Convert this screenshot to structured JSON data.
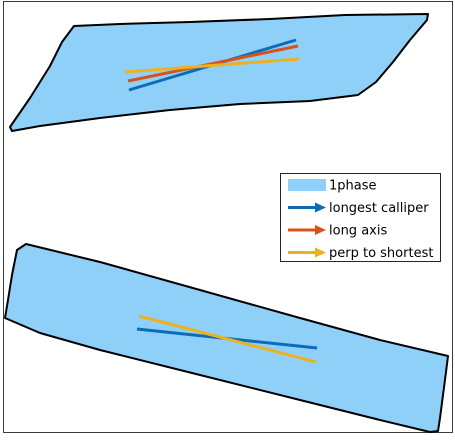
{
  "colors": {
    "grain_fill": "#8fd0f8",
    "grain_edge": "#000000",
    "frame": "#3a3a3a",
    "longest_calliper": "#0a6db8",
    "long_axis": "#d95319",
    "perp_to_shortest": "#edb120"
  },
  "legend": {
    "position": "right",
    "entries": [
      {
        "key": "phase",
        "label": "1phase",
        "marker": "patch",
        "color": "#8fd0f8"
      },
      {
        "key": "longest_calliper",
        "label": "longest calliper",
        "marker": "arrow",
        "color": "#0a6db8"
      },
      {
        "key": "long_axis",
        "label": "long axis",
        "marker": "arrow",
        "color": "#d95319"
      },
      {
        "key": "perp_to_shortest",
        "label": "perp to shortest",
        "marker": "arrow",
        "color": "#edb120"
      }
    ]
  }
}
